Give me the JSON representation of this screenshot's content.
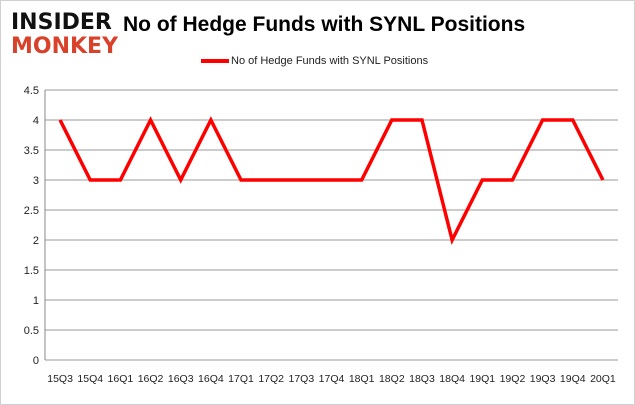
{
  "logo": {
    "line1": "INSIDER",
    "line2": "MONKEY"
  },
  "chart_data": {
    "type": "line",
    "title": "No of Hedge Funds with SYNL Positions",
    "categories": [
      "15Q3",
      "15Q4",
      "16Q1",
      "16Q2",
      "16Q3",
      "16Q4",
      "17Q1",
      "17Q2",
      "17Q3",
      "17Q4",
      "18Q1",
      "18Q2",
      "18Q3",
      "18Q4",
      "19Q1",
      "19Q2",
      "19Q3",
      "19Q4",
      "20Q1"
    ],
    "series": [
      {
        "name": "No of Hedge Funds with SYNL Positions",
        "color": "#ff0000",
        "values": [
          4,
          3,
          3,
          4,
          3,
          4,
          3,
          3,
          3,
          3,
          3,
          4,
          4,
          2,
          3,
          3,
          4,
          4,
          3
        ]
      }
    ],
    "yticks": [
      "0",
      "0.5",
      "1",
      "1.5",
      "2",
      "2.5",
      "3",
      "3.5",
      "4",
      "4.5"
    ],
    "ylim": [
      0,
      4.5
    ],
    "grid": true,
    "legend": "top"
  }
}
